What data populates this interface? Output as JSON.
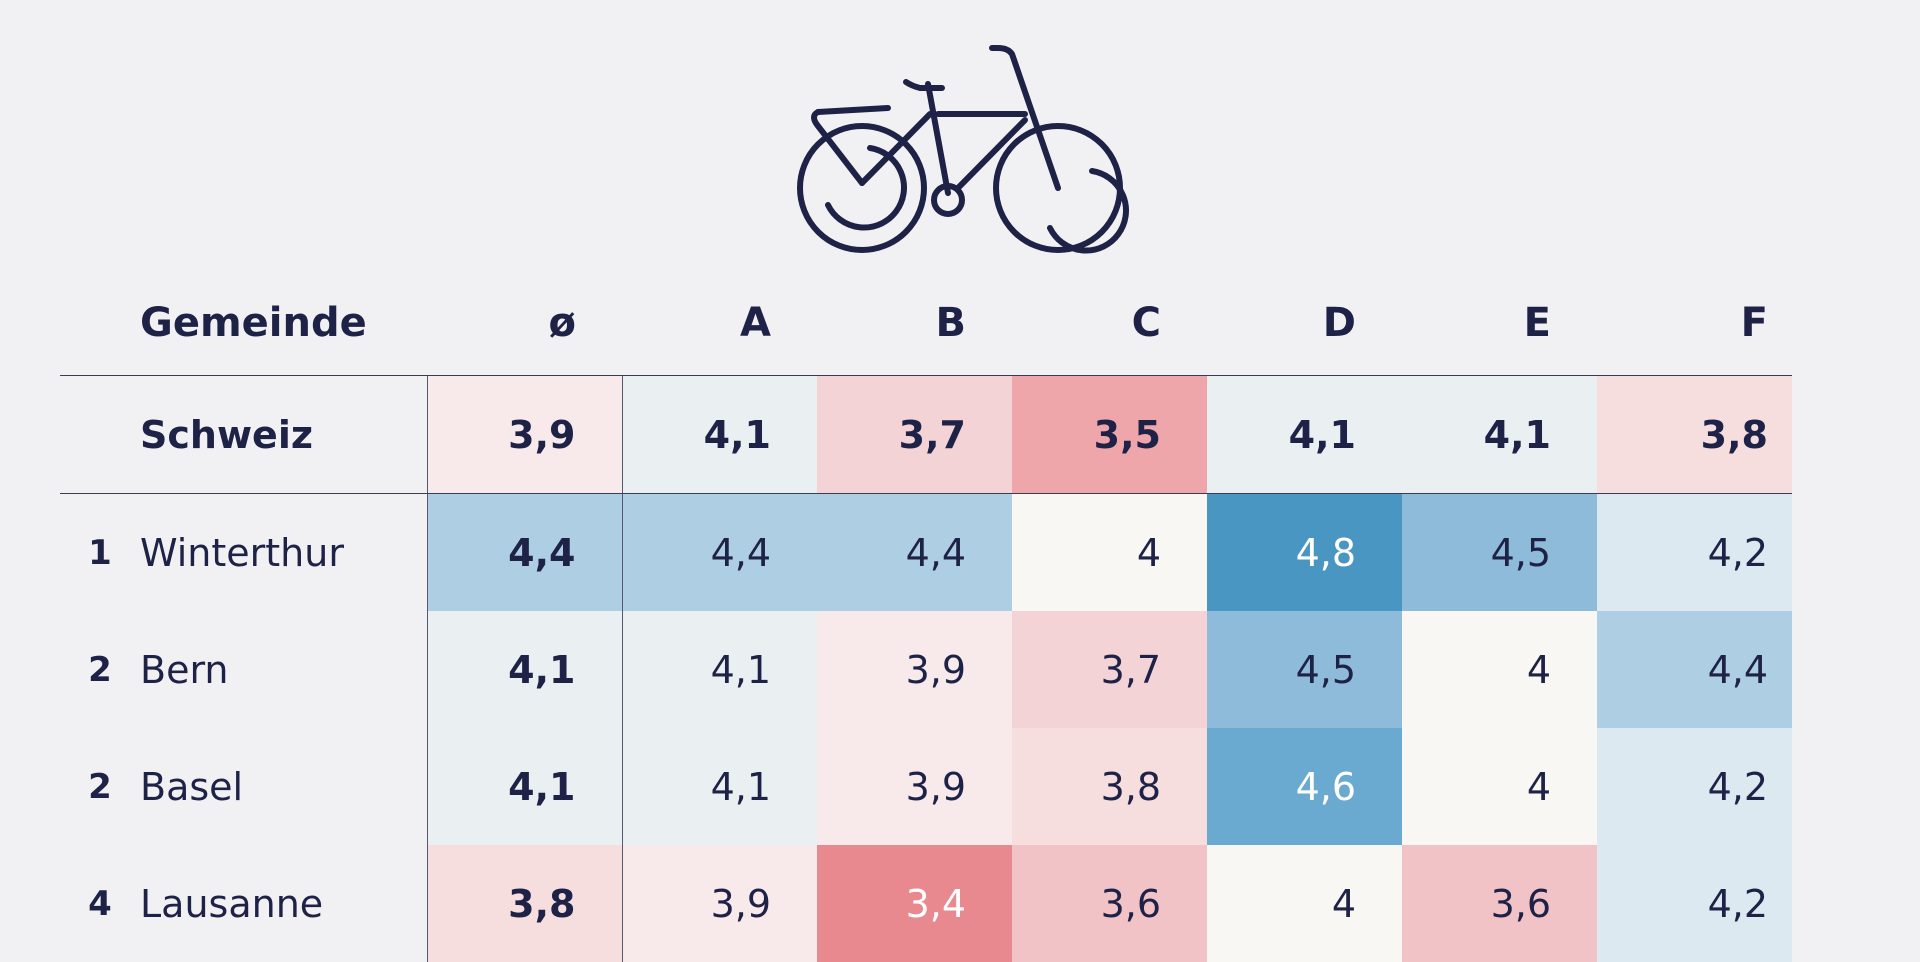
{
  "colors": {
    "background": "#f1f1f3",
    "text": "#1e2247",
    "icon": "#1e2247"
  },
  "icon": "bicycle-icon",
  "header": {
    "rank": "",
    "name": "Gemeinde",
    "columns": [
      "ø",
      "A",
      "B",
      "C",
      "D",
      "E",
      "F"
    ]
  },
  "summary": {
    "rank": "",
    "name": "Schweiz",
    "values": [
      "3,9",
      "4,1",
      "3,7",
      "3,5",
      "4,1",
      "4,1",
      "3,8"
    ],
    "colors": [
      "#f8e9ea",
      "#eaeff2",
      "#f3d3d6",
      "#eea6aa",
      "#eaeff2",
      "#eaeff2",
      "#f6dedf"
    ]
  },
  "rows": [
    {
      "rank": "1",
      "name": "Winterthur",
      "values": [
        "4,4",
        "4,4",
        "4,4",
        "4",
        "4,8",
        "4,5",
        "4,2"
      ],
      "colors": [
        "#aecfe3",
        "#aecfe3",
        "#aecfe3",
        "#f8f7f4",
        "#4a96c2",
        "#8ebbd9",
        "#dce9f0"
      ],
      "light_text": [
        false,
        false,
        false,
        false,
        true,
        false,
        false
      ]
    },
    {
      "rank": "2",
      "name": "Bern",
      "values": [
        "4,1",
        "4,1",
        "3,9",
        "3,7",
        "4,5",
        "4",
        "4,4"
      ],
      "colors": [
        "#eaeff2",
        "#eaeff2",
        "#f8e9ea",
        "#f3d3d6",
        "#8ebbd9",
        "#f8f7f4",
        "#aecfe3"
      ],
      "light_text": [
        false,
        false,
        false,
        false,
        false,
        false,
        false
      ]
    },
    {
      "rank": "2",
      "name": "Basel",
      "values": [
        "4,1",
        "4,1",
        "3,9",
        "3,8",
        "4,6",
        "4",
        "4,2"
      ],
      "colors": [
        "#eaeff2",
        "#eaeff2",
        "#f8e9ea",
        "#f6dedf",
        "#6aaad0",
        "#f8f7f4",
        "#dce9f0"
      ],
      "light_text": [
        false,
        false,
        false,
        false,
        true,
        false,
        false
      ]
    },
    {
      "rank": "4",
      "name": "Lausanne",
      "values": [
        "3,8",
        "3,9",
        "3,4",
        "3,6",
        "4",
        "3,6",
        "4,2"
      ],
      "colors": [
        "#f6dedf",
        "#f8e9ea",
        "#e8898f",
        "#f1c3c6",
        "#f8f7f4",
        "#f1c3c6",
        "#dce9f0"
      ],
      "light_text": [
        false,
        false,
        true,
        false,
        false,
        false,
        false
      ]
    }
  ]
}
